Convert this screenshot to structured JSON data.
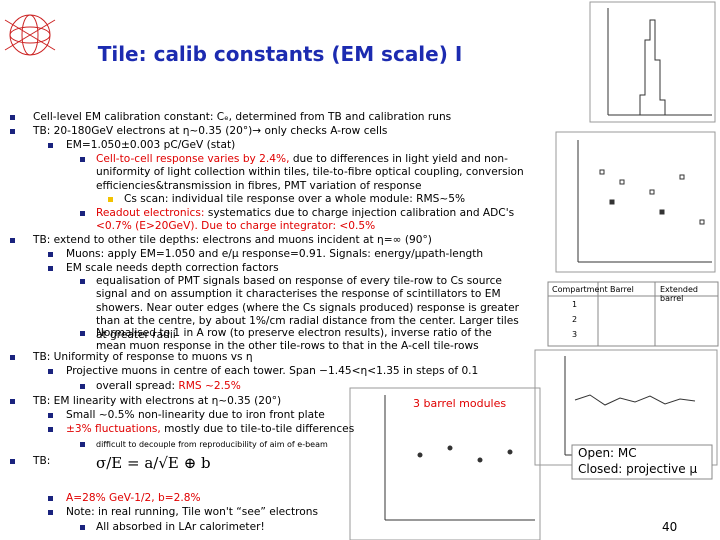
{
  "title": "Tile: calib constants (EM scale) I",
  "bullets": [
    {
      "level": 0,
      "parts": [
        {
          "text": "Cell-level EM calibration constant: Cₑ, determined from TB and calibration runs"
        }
      ]
    },
    {
      "level": 0,
      "parts": [
        {
          "text": "TB: 20-180GeV electrons at η~0.35 (20°)→ only checks A-row cells"
        }
      ]
    },
    {
      "level": 1,
      "parts": [
        {
          "text": "EM=1.050±0.003 pC/GeV (stat)"
        }
      ]
    },
    {
      "level": 2,
      "parts": [
        {
          "text": "Cell-to-cell response varies by 2.4%,",
          "red": true
        },
        {
          "text": " due to differences in light yield and non-uniformity of light collection within tiles, tile-to-fibre optical coupling, conversion efficiencies&transmission in fibres, PMT variation of response"
        }
      ]
    },
    {
      "level": 3,
      "parts": [
        {
          "text": "Cs scan: individual tile response over a whole module: RMS~5%"
        }
      ]
    },
    {
      "level": 2,
      "parts": [
        {
          "text": "Readout electronics:",
          "red": true
        },
        {
          "text": " systematics due to charge injection calibration and ADC's "
        },
        {
          "text": "<0.7% (E>20GeV). Due to charge integrator: <0.5%",
          "red": true
        }
      ]
    },
    {
      "level": 0,
      "parts": [
        {
          "text": "TB: extend to other tile depths: electrons and muons incident at η=∞ (90°)"
        }
      ]
    },
    {
      "level": 1,
      "parts": [
        {
          "text": "Muons: apply EM=1.050 and e/μ response=0.91. Signals: energy/μpath-length"
        }
      ]
    },
    {
      "level": 1,
      "parts": [
        {
          "text": "EM scale needs depth correction factors"
        }
      ]
    },
    {
      "level": 2,
      "parts": [
        {
          "text": "equalisation of PMT signals based on response of every tile-row to Cs source signal and on assumption it characterises the response of scintillators to EM showers. Near outer edges (where the Cs signals produced) response is greater than at the centre, by about 1%/cm radial distance from the center. Larger tiles at greater radii"
        }
      ]
    },
    {
      "level": 2,
      "parts": [
        {
          "text": "Normalised to 1 in A row (to preserve electron results), inverse ratio of the mean muon response in the other tile-rows to that in the A-cell tile-rows"
        }
      ]
    },
    {
      "level": 0,
      "parts": [
        {
          "text": "TB: Uniformity of response to muons vs η"
        }
      ]
    },
    {
      "level": 1,
      "parts": [
        {
          "text": "Projective muons in centre of each tower. Span −1.45<η<1.35 in steps of 0.1"
        }
      ]
    },
    {
      "level": 2,
      "parts": [
        {
          "text": "overall spread: "
        },
        {
          "text": "RMS ~2.5%",
          "red": true
        }
      ]
    },
    {
      "level": 0,
      "parts": [
        {
          "text": "TB: EM linearity with electrons at η~0.35 (20°)"
        }
      ]
    },
    {
      "level": 1,
      "parts": [
        {
          "text": "Small ~0.5% non-linearity due to iron front plate"
        }
      ]
    },
    {
      "level": 1,
      "parts": [
        {
          "text": "±3% fluctuations,",
          "red": true
        },
        {
          "text": " mostly due to tile-to-tile differences"
        }
      ]
    },
    {
      "level": 2,
      "parts": [
        {
          "text": "difficult to decouple from reproducibility of aim of e-beam"
        }
      ],
      "small": true
    },
    {
      "level": 0,
      "parts": [
        {
          "text": "TB:"
        }
      ]
    },
    {
      "level": 1,
      "parts": [
        {
          "text": "A=28% GeV-1/2, b=2.8%",
          "red": true
        }
      ]
    },
    {
      "level": 1,
      "parts": [
        {
          "text": "Note: in real running, Tile won't “see” electrons"
        }
      ]
    },
    {
      "level": 2,
      "parts": [
        {
          "text": "All absorbed in LAr calorimeter!"
        }
      ]
    }
  ],
  "formula": "σ/E = a/√E ⊕ b",
  "table_header": [
    "Compartment",
    "Barrel",
    "Extended barrel"
  ],
  "table_rows": [
    "1",
    "2",
    "3"
  ],
  "annotation": "3 barrel modules",
  "legend": [
    "Open: MC",
    "Closed: projective μ"
  ],
  "page_number": "40"
}
